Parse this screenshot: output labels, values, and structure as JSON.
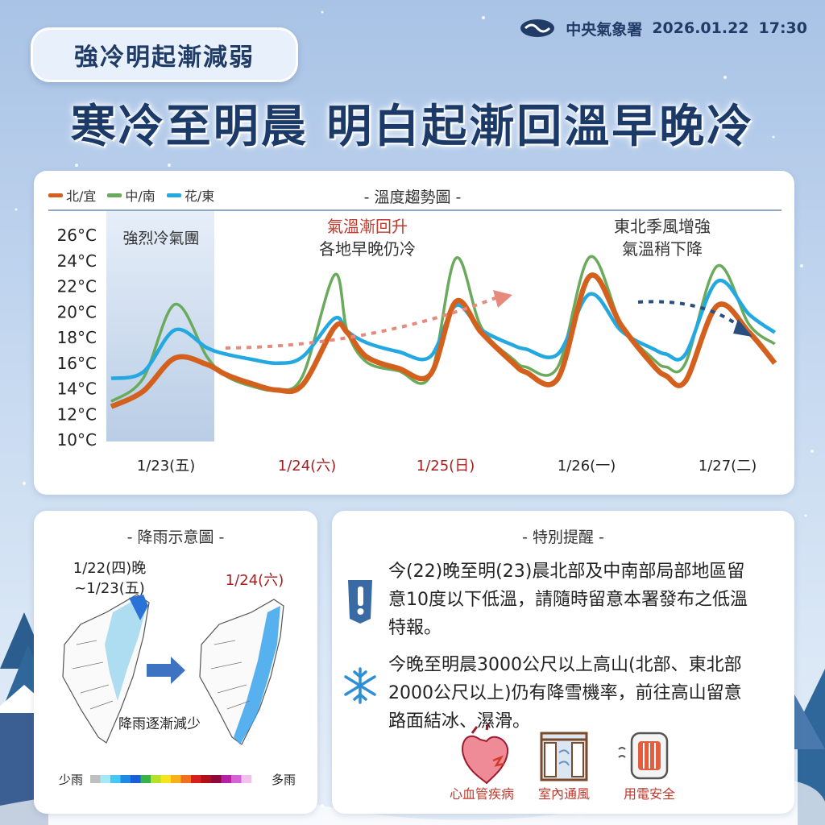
{
  "header": {
    "tag": "強冷明起漸減弱",
    "agency": "中央氣象署",
    "date": "2026.01.22",
    "time": "17:30",
    "headline": "寒冷至明晨 明白起漸回溫早晚冷"
  },
  "chart_data": {
    "type": "line",
    "title": "- 溫度趨勢圖 -",
    "ylim": [
      10,
      26
    ],
    "y_ticks": [
      "26°C",
      "24°C",
      "22°C",
      "20°C",
      "18°C",
      "16°C",
      "14°C",
      "12°C",
      "10°C"
    ],
    "categories": [
      "1/23(五)",
      "1/24(六)",
      "1/25(日)",
      "1/26(一)",
      "1/27(二)"
    ],
    "category_colors": [
      "#222222",
      "#a61e1e",
      "#a61e1e",
      "#222222",
      "#222222"
    ],
    "x": [
      0,
      0.5,
      1.0,
      1.5,
      1.8,
      2.2,
      2.6,
      3.0,
      3.5,
      3.7,
      4.0,
      4.5,
      5.0,
      5.4,
      5.8,
      6.3,
      6.5,
      7.0,
      7.5,
      8.0,
      8.5,
      8.7,
      9.0,
      9.5,
      10.0,
      10.4
    ],
    "series": [
      {
        "name": "北/宜",
        "color": "#d4601e",
        "values": [
          12.6,
          13.8,
          16.4,
          15.9,
          15.1,
          14.4,
          13.9,
          14.3,
          18.8,
          18.4,
          16.5,
          15.6,
          15.1,
          20.8,
          18.4,
          16.0,
          15.3,
          14.8,
          22.8,
          18.9,
          15.8,
          15.0,
          14.6,
          20.5,
          18.4,
          16.0
        ]
      },
      {
        "name": "中/南",
        "color": "#6aaa5c",
        "values": [
          13.0,
          14.8,
          20.6,
          16.5,
          15.0,
          14.2,
          13.9,
          15.0,
          22.9,
          18.5,
          16.1,
          15.4,
          15.0,
          24.2,
          18.8,
          16.3,
          15.7,
          15.7,
          24.3,
          19.0,
          16.3,
          15.7,
          16.0,
          23.6,
          19.0,
          17.5
        ]
      },
      {
        "name": "花/東",
        "color": "#23a8e0",
        "values": [
          14.8,
          15.3,
          18.6,
          17.2,
          16.7,
          16.3,
          16.0,
          16.5,
          19.5,
          18.5,
          17.6,
          16.9,
          16.5,
          20.5,
          18.6,
          17.4,
          17.1,
          16.7,
          21.4,
          18.5,
          17.1,
          16.7,
          16.7,
          22.4,
          19.8,
          18.4
        ]
      }
    ],
    "legend": "top-left",
    "annotations": {
      "cold_mass": "強烈冷氣團",
      "warming_1": "氣溫漸回升",
      "warming_2": "各地早晚仍冷",
      "monsoon_1": "東北季風增強",
      "monsoon_2": "氣溫稍下降"
    }
  },
  "rain": {
    "title": "- 降雨示意圖 -",
    "map1_label_1": "1/22(四)晚",
    "map1_label_2": "~1/23(五)",
    "map2_label": "1/24(六)",
    "decrease_label": "降雨逐漸減少",
    "scale_low": "少雨",
    "scale_high": "多雨",
    "scale_colors": [
      "#bfbfbf",
      "#a5e8f7",
      "#45c8f2",
      "#1d8be6",
      "#1b5ed8",
      "#3ab24a",
      "#b8e02a",
      "#f6e51c",
      "#f7b21a",
      "#f2701d",
      "#d81f1f",
      "#b1101a",
      "#8e0b39",
      "#b820a6",
      "#d464d6",
      "#f2c0ef"
    ]
  },
  "notes": {
    "title": "- 特別提醒 -",
    "tip1_line1": "今(22)晚至明(23)晨北部及中南部局部地區留",
    "tip1_line2": "意10度以下低溫，請隨時留意本署發布之低溫",
    "tip1_line3": "特報。",
    "tip2_line1": "今晚至明晨3000公尺以上高山(北部、東北部",
    "tip2_line2": "2000公尺以上)仍有降雪機率，前往高山留意",
    "tip2_line3": "路面結冰、濕滑。",
    "icon1_label": "心血管疾病",
    "icon2_label": "室內通風",
    "icon3_label": "用電安全",
    "accent": "#c0392b"
  }
}
